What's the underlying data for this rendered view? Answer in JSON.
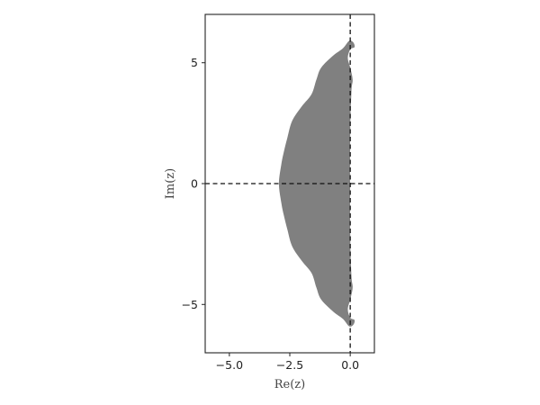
{
  "chart_data": {
    "type": "area",
    "title": "",
    "xlabel": "Re(z)",
    "ylabel": "Im(z)",
    "xlim": [
      -6.0,
      1.0
    ],
    "ylim": [
      -7.0,
      7.0
    ],
    "x_ticks": [
      -5.0,
      -2.5,
      0.0
    ],
    "x_tick_labels": [
      "−5.0",
      "−2.5",
      "0.0"
    ],
    "y_ticks": [
      5,
      0,
      -5
    ],
    "y_tick_labels": [
      "5",
      "0",
      "−5"
    ],
    "grid": false,
    "reference_lines": [
      {
        "orientation": "horizontal",
        "value": 0,
        "style": "dashed"
      },
      {
        "orientation": "vertical",
        "value": 0,
        "style": "dashed"
      }
    ],
    "series": [
      {
        "fill_color": "#808080",
        "boundary": [
          {
            "re": 0.0,
            "im": 5.55
          },
          {
            "re": 0.18,
            "im": 5.65
          },
          {
            "re": 0.12,
            "im": 5.85
          },
          {
            "re": -0.05,
            "im": 5.9
          },
          {
            "re": -0.3,
            "im": 5.6
          },
          {
            "re": -0.7,
            "im": 5.3
          },
          {
            "re": -1.2,
            "im": 4.8
          },
          {
            "re": -1.4,
            "im": 4.3
          },
          {
            "re": -1.6,
            "im": 3.7
          },
          {
            "re": -2.0,
            "im": 3.2
          },
          {
            "re": -2.4,
            "im": 2.6
          },
          {
            "re": -2.6,
            "im": 1.9
          },
          {
            "re": -2.75,
            "im": 1.3
          },
          {
            "re": -2.85,
            "im": 0.8
          },
          {
            "re": -2.95,
            "im": 0.0
          },
          {
            "re": -2.85,
            "im": -0.8
          },
          {
            "re": -2.75,
            "im": -1.3
          },
          {
            "re": -2.6,
            "im": -1.9
          },
          {
            "re": -2.4,
            "im": -2.6
          },
          {
            "re": -2.0,
            "im": -3.2
          },
          {
            "re": -1.6,
            "im": -3.7
          },
          {
            "re": -1.4,
            "im": -4.3
          },
          {
            "re": -1.2,
            "im": -4.8
          },
          {
            "re": -0.7,
            "im": -5.3
          },
          {
            "re": -0.3,
            "im": -5.6
          },
          {
            "re": -0.05,
            "im": -5.9
          },
          {
            "re": 0.12,
            "im": -5.85
          },
          {
            "re": 0.18,
            "im": -5.65
          },
          {
            "re": 0.0,
            "im": -5.55
          },
          {
            "re": -0.1,
            "im": -5.2
          },
          {
            "re": 0.0,
            "im": -4.8
          },
          {
            "re": 0.1,
            "im": -4.3
          },
          {
            "re": 0.05,
            "im": -3.8
          },
          {
            "re": 0.0,
            "im": -2.0
          },
          {
            "re": 0.0,
            "im": 2.0
          },
          {
            "re": 0.05,
            "im": 3.8
          },
          {
            "re": 0.1,
            "im": 4.3
          },
          {
            "re": 0.0,
            "im": 4.8
          },
          {
            "re": -0.1,
            "im": 5.2
          }
        ]
      }
    ]
  }
}
